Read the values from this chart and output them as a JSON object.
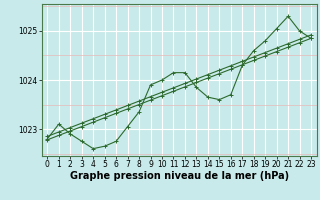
{
  "xlabel": "Graphe pression niveau de la mer (hPa)",
  "x": [
    0,
    1,
    2,
    3,
    4,
    5,
    6,
    7,
    8,
    9,
    10,
    11,
    12,
    13,
    14,
    15,
    16,
    17,
    18,
    19,
    20,
    21,
    22,
    23
  ],
  "line1": [
    1022.8,
    1023.1,
    1022.9,
    1022.75,
    1022.6,
    1022.65,
    1022.75,
    1023.05,
    1023.35,
    1023.9,
    1024.0,
    1024.15,
    1024.15,
    1023.85,
    1023.65,
    1023.6,
    1023.7,
    1024.3,
    1024.6,
    1024.8,
    1025.05,
    1025.3,
    1025.0,
    1024.85
  ],
  "line2_slope": [
    1022.78,
    1022.87,
    1022.96,
    1023.05,
    1023.14,
    1023.23,
    1023.32,
    1023.41,
    1023.5,
    1023.59,
    1023.68,
    1023.77,
    1023.86,
    1023.95,
    1024.04,
    1024.13,
    1024.22,
    1024.31,
    1024.4,
    1024.49,
    1024.58,
    1024.67,
    1024.76,
    1024.85
  ],
  "line3_slope": [
    1022.85,
    1022.94,
    1023.03,
    1023.12,
    1023.21,
    1023.3,
    1023.39,
    1023.48,
    1023.57,
    1023.66,
    1023.75,
    1023.84,
    1023.93,
    1024.02,
    1024.11,
    1024.2,
    1024.29,
    1024.38,
    1024.47,
    1024.56,
    1024.65,
    1024.74,
    1024.83,
    1024.92
  ],
  "line_color": "#2d6a2d",
  "bg_color": "#c8eaea",
  "grid_major_color": "#ffffff",
  "grid_minor_color": "#e8b8b8",
  "ylim": [
    1022.45,
    1025.55
  ],
  "yticks": [
    1023,
    1024,
    1025
  ],
  "xticks": [
    0,
    1,
    2,
    3,
    4,
    5,
    6,
    7,
    8,
    9,
    10,
    11,
    12,
    13,
    14,
    15,
    16,
    17,
    18,
    19,
    20,
    21,
    22,
    23
  ],
  "xlabel_fontsize": 7,
  "tick_fontsize": 5.5,
  "xlabel_fontweight": "bold"
}
